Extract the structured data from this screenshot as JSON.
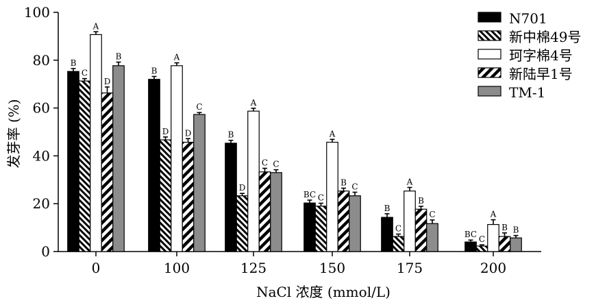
{
  "chart_data": {
    "type": "bar",
    "title": "",
    "xlabel": "NaCl 浓度 (mmol/L)",
    "ylabel": "发芽率 (%)",
    "ylim": [
      0,
      100
    ],
    "yticks": [
      0,
      20,
      40,
      60,
      80,
      100
    ],
    "grid": false,
    "legend_position": "top-right",
    "categories": [
      "0",
      "100",
      "125",
      "150",
      "175",
      "200"
    ],
    "series": [
      {
        "name": "N701",
        "fill": "solid-black",
        "color": "#000000",
        "values": [
          75.3,
          72.0,
          45.3,
          20.3,
          14.3,
          4.0
        ],
        "errors": [
          1.2,
          1.2,
          1.2,
          1.2,
          1.5,
          0.8
        ],
        "labels": [
          "B",
          "B",
          "B",
          "BC",
          "B",
          "BC"
        ]
      },
      {
        "name": "新中棉49号",
        "fill": "hatch-back-diagonal",
        "color": "#000000",
        "values": [
          71.3,
          46.7,
          23.3,
          19.0,
          6.3,
          2.3
        ],
        "errors": [
          1.0,
          1.2,
          1.0,
          1.2,
          1.0,
          0.5
        ],
        "labels": [
          "C",
          "D",
          "D",
          "C",
          "C",
          "C"
        ]
      },
      {
        "name": "珂字棉4号",
        "fill": "white",
        "color": "#ffffff",
        "values": [
          90.7,
          77.7,
          58.7,
          45.7,
          25.3,
          11.3
        ],
        "errors": [
          1.2,
          1.2,
          1.2,
          1.2,
          1.5,
          2.0
        ],
        "labels": [
          "A",
          "A",
          "A",
          "A",
          "A",
          "A"
        ]
      },
      {
        "name": "新陆早1号",
        "fill": "hatch-forward-diagonal-thick",
        "color": "#000000",
        "values": [
          66.3,
          45.7,
          33.3,
          25.3,
          17.7,
          6.3
        ],
        "errors": [
          2.5,
          1.5,
          1.5,
          1.2,
          1.2,
          1.5
        ],
        "labels": [
          "D",
          "D",
          "C",
          "B",
          "B",
          "B"
        ]
      },
      {
        "name": "TM-1",
        "fill": "solid-gray",
        "color": "#8c8c8c",
        "values": [
          77.7,
          57.3,
          33.0,
          23.3,
          11.7,
          5.7
        ],
        "errors": [
          1.5,
          0.8,
          1.2,
          1.5,
          1.5,
          1.0
        ],
        "labels": [
          "B",
          "C",
          "C",
          "C",
          "C",
          "B"
        ]
      }
    ]
  }
}
